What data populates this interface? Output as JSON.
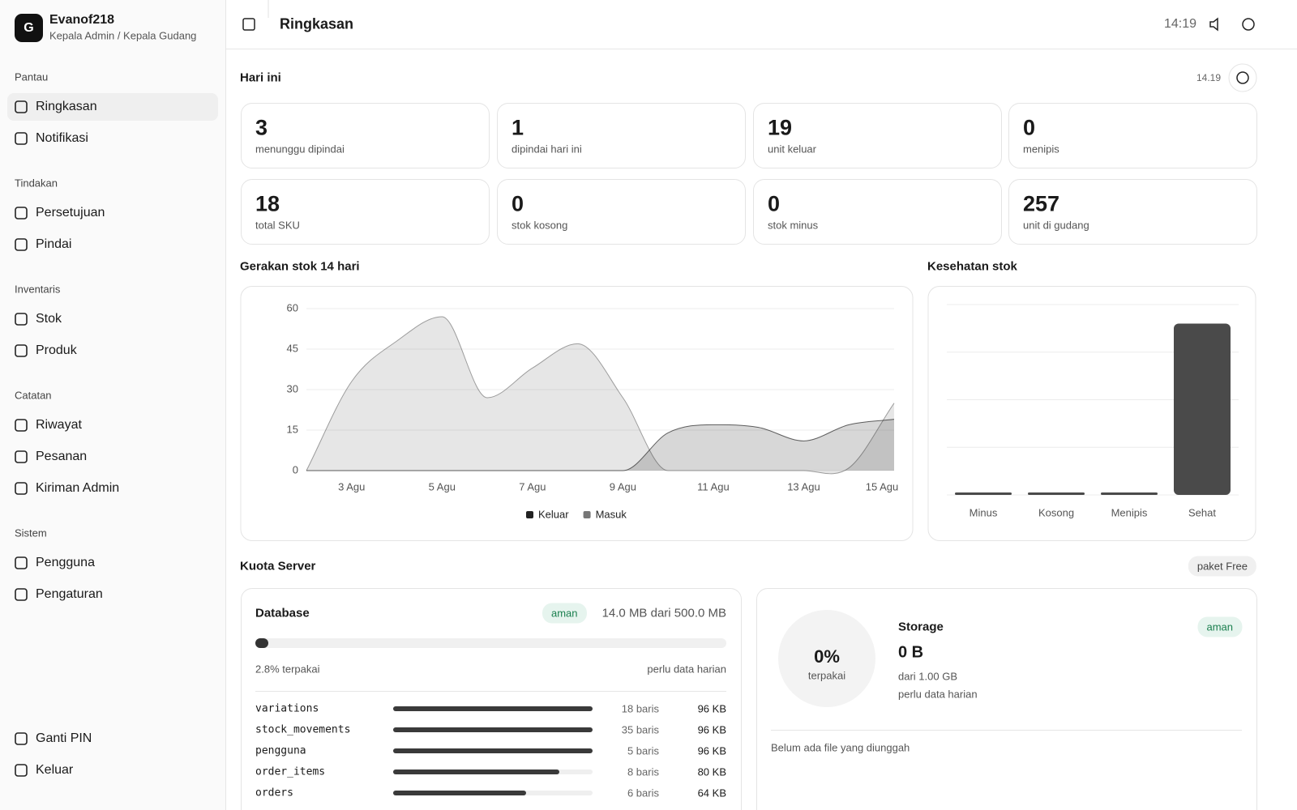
{
  "sidebar": {
    "avatar": "G",
    "user": "Evanof218",
    "role": "Kepala Admin / Kepala Gudang",
    "groups": [
      {
        "title": "Pantau",
        "items": [
          "Ringkasan",
          "Notifikasi"
        ]
      },
      {
        "title": "Tindakan",
        "items": [
          "Persetujuan",
          "Pindai"
        ]
      },
      {
        "title": "Inventaris",
        "items": [
          "Stok",
          "Produk"
        ]
      },
      {
        "title": "Catatan",
        "items": [
          "Riwayat",
          "Pesanan",
          "Kiriman Admin"
        ]
      },
      {
        "title": "Sistem",
        "items": [
          "Pengguna",
          "Pengaturan"
        ]
      }
    ],
    "footer": [
      "Ganti PIN",
      "Keluar"
    ]
  },
  "header": {
    "title": "Ringkasan",
    "time": "14:19"
  },
  "today": {
    "title": "Hari ini",
    "time": "14.19",
    "stats": [
      {
        "value": 3,
        "label": "menunggu dipindai"
      },
      {
        "value": 1,
        "label": "dipindai hari ini"
      },
      {
        "value": 19,
        "label": "unit keluar"
      },
      {
        "value": 0,
        "label": "menipis"
      },
      {
        "value": 18,
        "label": "total SKU"
      },
      {
        "value": 0,
        "label": "stok kosong"
      },
      {
        "value": 0,
        "label": "stok minus"
      },
      {
        "value": 257,
        "label": "unit di gudang"
      }
    ]
  },
  "stock_chart": {
    "type": "area",
    "title": "Gerakan stok 14 hari",
    "categories": [
      null,
      "3 Agu",
      null,
      "5 Agu",
      null,
      "7 Agu",
      null,
      "9 Agu",
      null,
      "11 Agu",
      null,
      "13 Agu",
      null,
      "15 Agu"
    ],
    "series": [
      {
        "name": "Keluar",
        "color": "#222222",
        "values": [
          0,
          0,
          0,
          0,
          0,
          0,
          0,
          0,
          14,
          17,
          16,
          11,
          17,
          19
        ]
      },
      {
        "name": "Masuk",
        "color": "#777777",
        "values": [
          0,
          33,
          48,
          57,
          27,
          38,
          47,
          27,
          0,
          0,
          0,
          0,
          1,
          25
        ]
      }
    ],
    "ylim": [
      0,
      60
    ],
    "yticks": [
      0,
      15,
      30,
      45,
      60
    ],
    "grid": true
  },
  "health_chart": {
    "type": "bar",
    "title": "Kesehatan stok",
    "categories": [
      "Minus",
      "Kosong",
      "Menipis",
      "Sehat"
    ],
    "values": [
      0,
      0,
      0,
      18
    ],
    "color": "#4a4a4a",
    "ylim": [
      0,
      20
    ],
    "yticks": [
      0,
      5,
      10,
      15,
      20
    ],
    "grid": true
  },
  "quota": {
    "title": "Kuota Server",
    "plan": "paket Free",
    "database": {
      "title": "Database",
      "status": "aman",
      "usage": "14.0 MB dari 500.0 MB",
      "used_percent": 2.8,
      "used_label": "2.8% terpakai",
      "note": "perlu data harian",
      "tables": [
        {
          "name": "variations",
          "rows": "18 baris",
          "size": 96,
          "size_label": "96 KB"
        },
        {
          "name": "stock_movements",
          "rows": "35 baris",
          "size": 96,
          "size_label": "96 KB"
        },
        {
          "name": "pengguna",
          "rows": "5 baris",
          "size": 96,
          "size_label": "96 KB"
        },
        {
          "name": "order_items",
          "rows": "8 baris",
          "size": 80,
          "size_label": "80 KB"
        },
        {
          "name": "orders",
          "rows": "6 baris",
          "size": 64,
          "size_label": "64 KB"
        }
      ]
    },
    "storage": {
      "title": "Storage",
      "status": "aman",
      "percent": "0%",
      "percent_label": "terpakai",
      "size": "0 B",
      "capacity": "dari 1.00 GB",
      "note": "perlu data harian",
      "empty": "Belum ada file yang diunggah"
    }
  }
}
